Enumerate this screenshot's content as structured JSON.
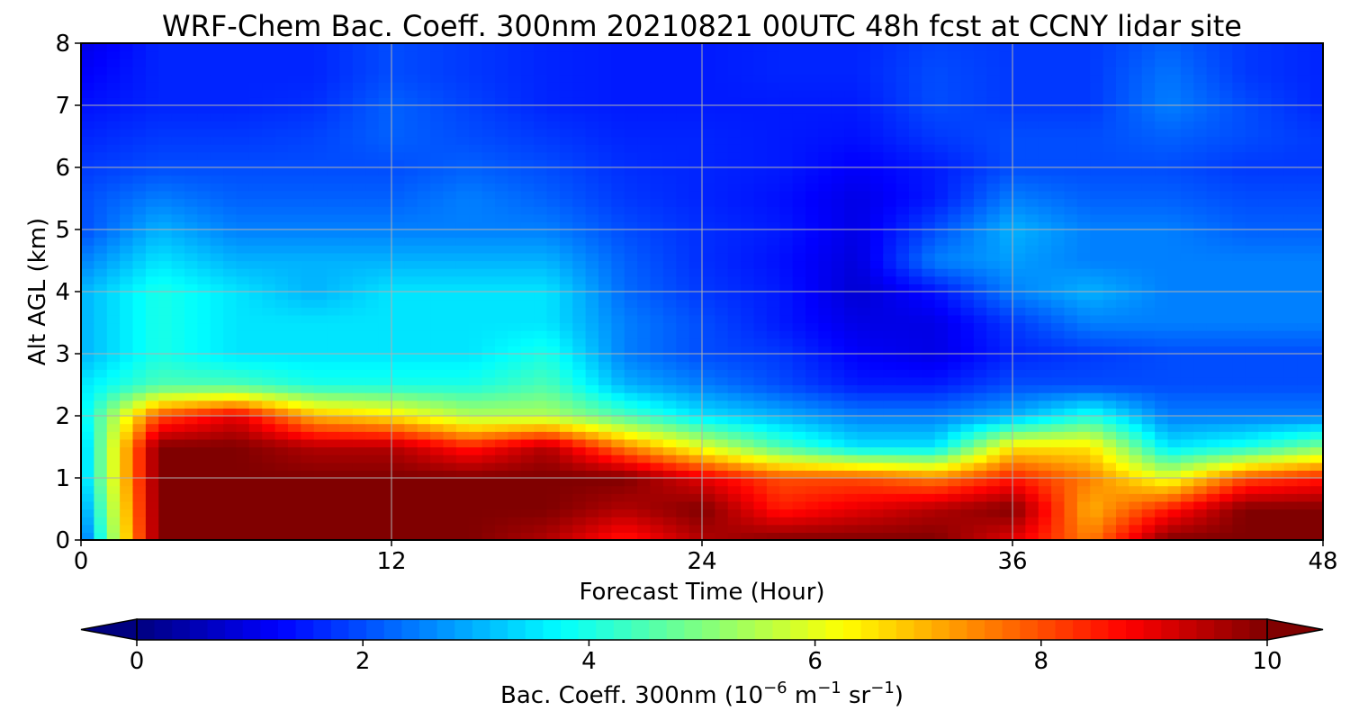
{
  "chart_data": {
    "type": "heatmap",
    "title": "WRF-Chem Bac. Coeff. 300nm  20210821 00UTC 48h fcst at CCNY lidar site",
    "xlabel": "Forecast Time (Hour)",
    "ylabel": "Alt AGL (km)",
    "xlim": [
      0,
      48
    ],
    "ylim": [
      0,
      8
    ],
    "x_ticks": [
      0,
      12,
      24,
      36,
      48
    ],
    "y_ticks": [
      0,
      1,
      2,
      3,
      4,
      5,
      6,
      7,
      8
    ],
    "grid": true,
    "colormap": "jet",
    "colorbar": {
      "label_main": "Bac. Coeff. 300nm  (10",
      "label_exp1": "−6",
      "label_mid": " m",
      "label_exp2": "−1",
      "label_mid2": " sr",
      "label_exp3": "−1",
      "label_end": ")",
      "range": [
        0,
        10
      ],
      "ticks": [
        0,
        2,
        4,
        6,
        8,
        10
      ],
      "extend": "both",
      "placement": "bottom"
    },
    "hours": [
      0,
      3,
      6,
      9,
      12,
      15,
      18,
      21,
      24,
      27,
      30,
      33,
      36,
      39,
      42,
      45,
      48
    ],
    "altitudes_km": [
      0,
      0.5,
      1,
      1.5,
      2,
      2.5,
      3,
      3.5,
      4,
      4.5,
      5,
      5.5,
      6,
      6.5,
      7,
      7.5,
      8
    ],
    "values": [
      [
        2.0,
        10.0,
        10.0,
        10.0,
        10.0,
        10.0,
        9.5,
        8.5,
        9.5,
        10.0,
        10.0,
        10.0,
        9.0,
        7.5,
        10.0,
        10.0,
        10.0
      ],
      [
        2.5,
        10.0,
        10.0,
        10.0,
        10.0,
        10.0,
        10.0,
        9.5,
        10.0,
        8.5,
        9.0,
        9.5,
        10.0,
        7.0,
        8.5,
        10.0,
        10.0
      ],
      [
        3.0,
        10.0,
        10.0,
        10.0,
        10.0,
        10.0,
        10.0,
        10.0,
        9.0,
        8.0,
        8.0,
        7.5,
        8.5,
        7.5,
        6.0,
        8.0,
        8.5
      ],
      [
        3.0,
        10.0,
        10.0,
        9.5,
        9.5,
        8.5,
        9.5,
        7.5,
        6.0,
        4.5,
        3.5,
        3.5,
        6.5,
        6.5,
        3.5,
        4.0,
        5.0
      ],
      [
        3.5,
        8.0,
        9.0,
        7.0,
        6.5,
        5.5,
        5.5,
        4.5,
        3.5,
        3.0,
        2.5,
        2.5,
        3.0,
        4.0,
        2.5,
        2.5,
        2.5
      ],
      [
        3.5,
        4.5,
        4.5,
        4.0,
        4.0,
        4.0,
        4.5,
        3.0,
        2.5,
        2.0,
        1.5,
        1.5,
        2.0,
        2.0,
        2.0,
        2.0,
        2.0
      ],
      [
        3.0,
        4.0,
        3.5,
        3.5,
        3.5,
        3.5,
        4.0,
        2.5,
        2.0,
        1.8,
        1.2,
        1.0,
        1.6,
        1.8,
        2.0,
        2.0,
        2.0
      ],
      [
        3.0,
        4.0,
        3.5,
        3.5,
        3.5,
        3.5,
        3.5,
        2.5,
        2.0,
        1.5,
        1.0,
        1.0,
        1.8,
        2.5,
        2.5,
        2.5,
        2.5
      ],
      [
        3.0,
        4.0,
        3.5,
        3.0,
        3.5,
        3.5,
        3.5,
        2.3,
        1.8,
        1.5,
        0.8,
        1.4,
        2.5,
        3.0,
        2.5,
        2.5,
        2.5
      ],
      [
        2.5,
        3.5,
        3.0,
        3.0,
        3.0,
        3.0,
        3.0,
        2.2,
        1.7,
        1.4,
        0.9,
        2.5,
        2.8,
        2.5,
        2.5,
        2.5,
        2.5
      ],
      [
        2.0,
        3.0,
        2.5,
        2.5,
        2.5,
        2.5,
        2.5,
        2.0,
        1.7,
        1.5,
        1.0,
        2.0,
        3.0,
        2.5,
        2.5,
        2.2,
        2.2
      ],
      [
        2.0,
        2.5,
        2.2,
        2.2,
        2.2,
        2.5,
        2.2,
        1.8,
        1.6,
        1.4,
        1.0,
        1.5,
        2.5,
        2.2,
        2.2,
        2.0,
        2.0
      ],
      [
        1.8,
        2.0,
        2.0,
        2.0,
        2.0,
        2.2,
        2.0,
        1.7,
        1.6,
        1.5,
        1.2,
        1.5,
        2.0,
        2.0,
        2.0,
        1.8,
        1.8
      ],
      [
        1.6,
        1.8,
        1.8,
        1.9,
        2.2,
        2.0,
        1.8,
        1.6,
        1.6,
        1.5,
        1.4,
        1.8,
        2.0,
        2.0,
        2.2,
        2.0,
        1.8
      ],
      [
        1.4,
        1.6,
        1.6,
        1.7,
        2.2,
        1.9,
        1.6,
        1.5,
        1.5,
        1.5,
        1.5,
        2.0,
        1.8,
        1.8,
        2.5,
        2.0,
        1.6
      ],
      [
        1.2,
        1.6,
        1.6,
        1.6,
        2.0,
        1.8,
        1.6,
        1.5,
        1.5,
        1.6,
        1.6,
        2.0,
        1.8,
        1.8,
        2.4,
        1.8,
        1.6
      ],
      [
        1.0,
        1.6,
        1.6,
        1.6,
        2.0,
        1.8,
        1.6,
        1.5,
        1.5,
        1.6,
        1.6,
        1.9,
        1.8,
        1.8,
        2.2,
        1.8,
        1.6
      ]
    ]
  }
}
